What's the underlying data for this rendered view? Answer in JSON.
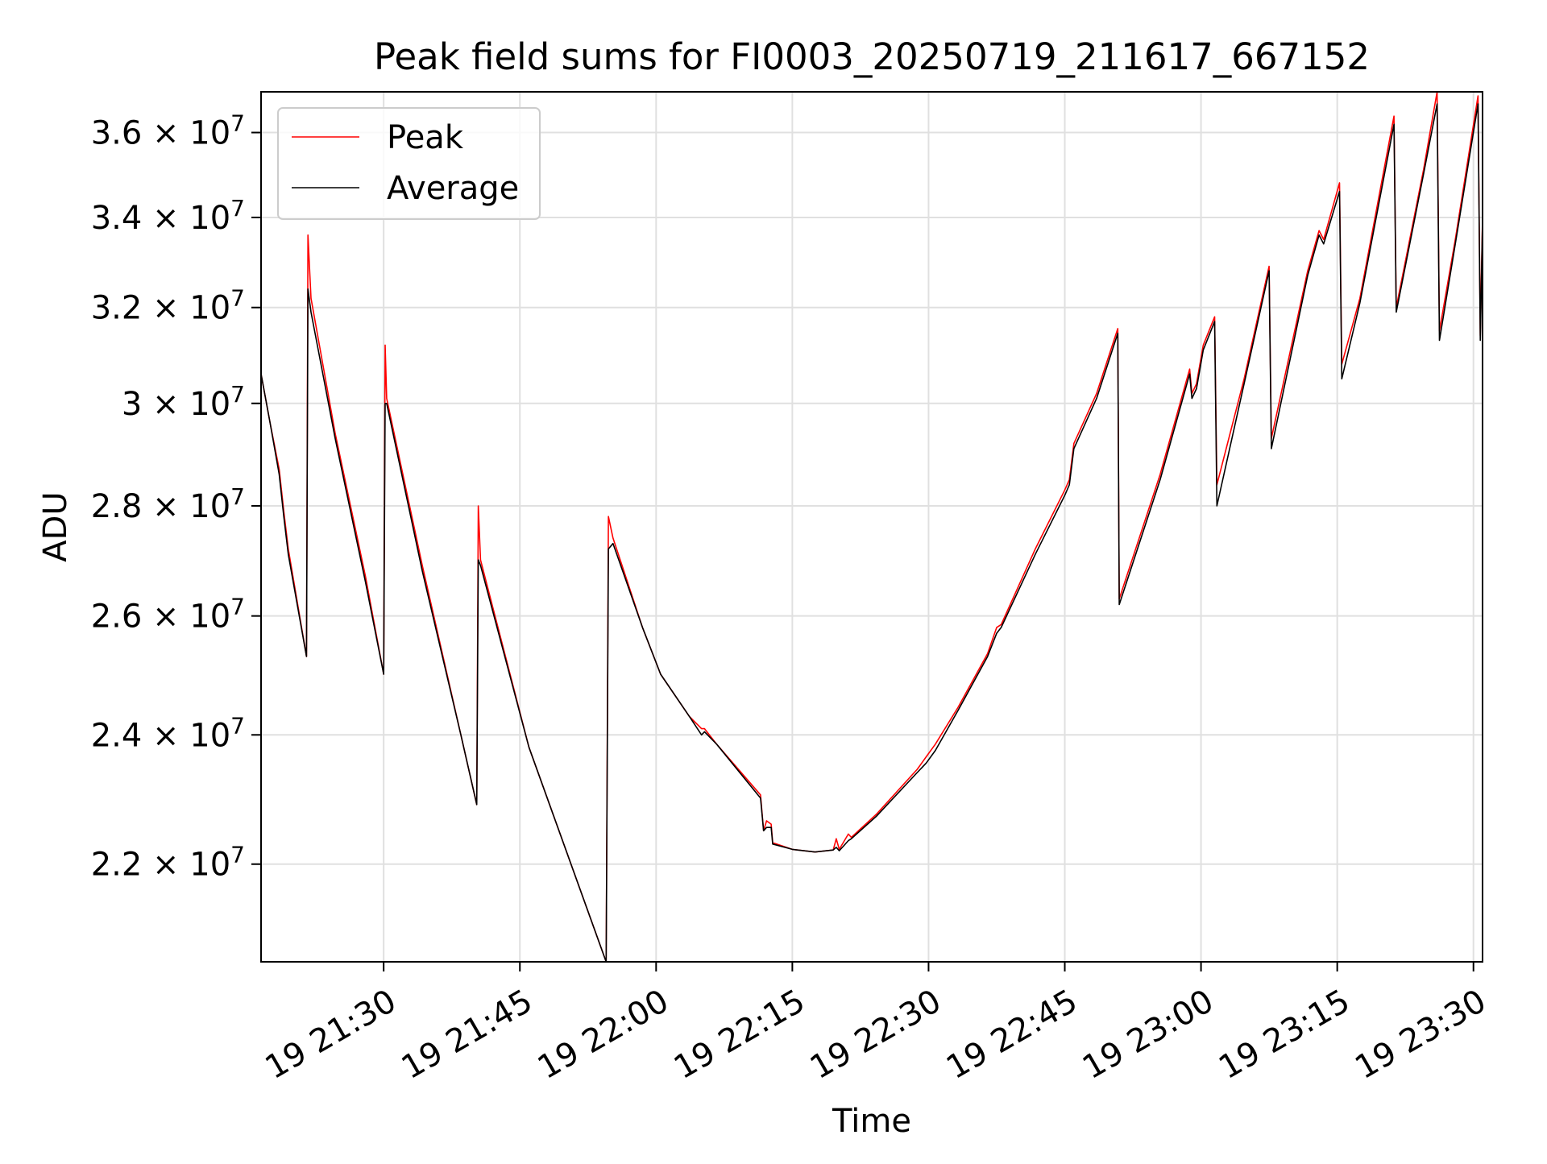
{
  "chart_data": {
    "type": "line",
    "title": "Peak field sums for FI0003_20250719_211617_667152",
    "xlabel": "Time",
    "ylabel": "ADU",
    "yscale": "log",
    "grid": true,
    "legend_position": "upper left",
    "xlim": [
      "2025-07-19 21:16:30",
      "2025-07-19 23:31:00"
    ],
    "ylim": [
      20600000,
      37000000
    ],
    "x_ticks": [
      {
        "value": "2025-07-19 21:30",
        "label": "19 21:30"
      },
      {
        "value": "2025-07-19 21:45",
        "label": "19 21:45"
      },
      {
        "value": "2025-07-19 22:00",
        "label": "19 22:00"
      },
      {
        "value": "2025-07-19 22:15",
        "label": "19 22:15"
      },
      {
        "value": "2025-07-19 22:30",
        "label": "19 22:30"
      },
      {
        "value": "2025-07-19 22:45",
        "label": "19 22:45"
      },
      {
        "value": "2025-07-19 23:00",
        "label": "19 23:00"
      },
      {
        "value": "2025-07-19 23:15",
        "label": "19 23:15"
      },
      {
        "value": "2025-07-19 23:30",
        "label": "19 23:30"
      }
    ],
    "y_ticks": [
      {
        "value": 22000000,
        "mantissa": "2.2",
        "base": "10",
        "exp": "7"
      },
      {
        "value": 24000000,
        "mantissa": "2.4",
        "base": "10",
        "exp": "7"
      },
      {
        "value": 26000000,
        "mantissa": "2.6",
        "base": "10",
        "exp": "7"
      },
      {
        "value": 28000000,
        "mantissa": "2.8",
        "base": "10",
        "exp": "7"
      },
      {
        "value": 30000000,
        "mantissa": "3",
        "base": "10",
        "exp": "7"
      },
      {
        "value": 32000000,
        "mantissa": "3.2",
        "base": "10",
        "exp": "7"
      },
      {
        "value": 34000000,
        "mantissa": "3.4",
        "base": "10",
        "exp": "7"
      },
      {
        "value": 36000000,
        "mantissa": "3.6",
        "base": "10",
        "exp": "7"
      }
    ],
    "series": [
      {
        "name": "Peak",
        "color": "#ff0000",
        "points": [
          [
            "2025-07-19 21:16:30",
            30600000
          ],
          [
            "2025-07-19 21:17:30",
            29600000
          ],
          [
            "2025-07-19 21:18:30",
            28700000
          ],
          [
            "2025-07-19 21:19:00",
            27900000
          ],
          [
            "2025-07-19 21:19:30",
            27200000
          ],
          [
            "2025-07-19 21:21:30",
            25300000
          ],
          [
            "2025-07-19 21:21:40",
            33600000
          ],
          [
            "2025-07-19 21:22:00",
            32200000
          ],
          [
            "2025-07-19 21:24:40",
            29400000
          ],
          [
            "2025-07-19 21:28:00",
            26700000
          ],
          [
            "2025-07-19 21:30:00",
            25000000
          ],
          [
            "2025-07-19 21:30:10",
            31200000
          ],
          [
            "2025-07-19 21:30:20",
            30100000
          ],
          [
            "2025-07-19 21:34:15",
            26900000
          ],
          [
            "2025-07-19 21:38:30",
            24000000
          ],
          [
            "2025-07-19 21:40:15",
            22900000
          ],
          [
            "2025-07-19 21:40:25",
            28000000
          ],
          [
            "2025-07-19 21:40:40",
            27000000
          ],
          [
            "2025-07-19 21:46:00",
            23800000
          ],
          [
            "2025-07-19 21:54:30",
            20600000
          ],
          [
            "2025-07-19 21:54:45",
            27800000
          ],
          [
            "2025-07-19 21:55:15",
            27400000
          ],
          [
            "2025-07-19 21:58:30",
            25800000
          ],
          [
            "2025-07-19 22:00:30",
            25000000
          ],
          [
            "2025-07-19 22:03:40",
            24300000
          ],
          [
            "2025-07-19 22:05:00",
            24100000
          ],
          [
            "2025-07-19 22:05:20",
            24100000
          ],
          [
            "2025-07-19 22:06:40",
            23850000
          ],
          [
            "2025-07-19 22:11:30",
            23050000
          ],
          [
            "2025-07-19 22:11:50",
            22500000
          ],
          [
            "2025-07-19 22:12:10",
            22650000
          ],
          [
            "2025-07-19 22:12:40",
            22600000
          ],
          [
            "2025-07-19 22:12:50",
            22320000
          ],
          [
            "2025-07-19 22:15:00",
            22220000
          ],
          [
            "2025-07-19 22:17:30",
            22180000
          ],
          [
            "2025-07-19 22:19:30",
            22210000
          ],
          [
            "2025-07-19 22:19:50",
            22380000
          ],
          [
            "2025-07-19 22:20:10",
            22220000
          ],
          [
            "2025-07-19 22:21:10",
            22450000
          ],
          [
            "2025-07-19 22:21:30",
            22400000
          ],
          [
            "2025-07-19 22:24:15",
            22750000
          ],
          [
            "2025-07-19 22:28:45",
            23450000
          ],
          [
            "2025-07-19 22:29:45",
            23650000
          ],
          [
            "2025-07-19 22:30:45",
            23850000
          ],
          [
            "2025-07-19 22:33:15",
            24450000
          ],
          [
            "2025-07-19 22:36:30",
            25350000
          ],
          [
            "2025-07-19 22:37:30",
            25800000
          ],
          [
            "2025-07-19 22:38:00",
            25850000
          ],
          [
            "2025-07-19 22:41:45",
            27200000
          ],
          [
            "2025-07-19 22:45:00",
            28300000
          ],
          [
            "2025-07-19 22:45:30",
            28500000
          ],
          [
            "2025-07-19 22:46:00",
            29200000
          ],
          [
            "2025-07-19 22:48:30",
            30200000
          ],
          [
            "2025-07-19 22:50:50",
            31550000
          ],
          [
            "2025-07-19 22:51:00",
            26300000
          ],
          [
            "2025-07-19 22:55:30",
            28600000
          ],
          [
            "2025-07-19 22:58:45",
            30700000
          ],
          [
            "2025-07-19 22:59:00",
            30200000
          ],
          [
            "2025-07-19 22:59:30",
            30400000
          ],
          [
            "2025-07-19 23:00:15",
            31200000
          ],
          [
            "2025-07-19 23:01:30",
            31800000
          ],
          [
            "2025-07-19 23:01:45",
            28400000
          ],
          [
            "2025-07-19 23:04:45",
            30500000
          ],
          [
            "2025-07-19 23:07:30",
            32900000
          ],
          [
            "2025-07-19 23:07:45",
            29300000
          ],
          [
            "2025-07-19 23:11:45",
            32800000
          ],
          [
            "2025-07-19 23:13:00",
            33700000
          ],
          [
            "2025-07-19 23:13:30",
            33500000
          ],
          [
            "2025-07-19 23:15:15",
            34800000
          ],
          [
            "2025-07-19 23:15:30",
            30800000
          ],
          [
            "2025-07-19 23:17:30",
            32200000
          ],
          [
            "2025-07-19 23:21:15",
            36400000
          ],
          [
            "2025-07-19 23:21:30",
            32000000
          ],
          [
            "2025-07-19 23:24:30",
            35100000
          ],
          [
            "2025-07-19 23:26:00",
            37000000
          ],
          [
            "2025-07-19 23:26:15",
            31500000
          ],
          [
            "2025-07-19 23:28:00",
            33500000
          ],
          [
            "2025-07-19 23:30:30",
            36900000
          ],
          [
            "2025-07-19 23:30:45",
            31400000
          ],
          [
            "2025-07-19 23:31:00",
            34000000
          ]
        ]
      },
      {
        "name": "Average",
        "color": "#000000",
        "points": [
          [
            "2025-07-19 21:16:30",
            30600000
          ],
          [
            "2025-07-19 21:17:30",
            29600000
          ],
          [
            "2025-07-19 21:18:30",
            28600000
          ],
          [
            "2025-07-19 21:19:00",
            27800000
          ],
          [
            "2025-07-19 21:19:30",
            27100000
          ],
          [
            "2025-07-19 21:21:30",
            25300000
          ],
          [
            "2025-07-19 21:21:40",
            32400000
          ],
          [
            "2025-07-19 21:22:00",
            31900000
          ],
          [
            "2025-07-19 21:24:40",
            29300000
          ],
          [
            "2025-07-19 21:28:00",
            26600000
          ],
          [
            "2025-07-19 21:30:00",
            25000000
          ],
          [
            "2025-07-19 21:30:10",
            30000000
          ],
          [
            "2025-07-19 21:30:20",
            30000000
          ],
          [
            "2025-07-19 21:34:15",
            26800000
          ],
          [
            "2025-07-19 21:38:30",
            24000000
          ],
          [
            "2025-07-19 21:40:15",
            22900000
          ],
          [
            "2025-07-19 21:40:25",
            27000000
          ],
          [
            "2025-07-19 21:40:40",
            26900000
          ],
          [
            "2025-07-19 21:46:00",
            23800000
          ],
          [
            "2025-07-19 21:54:30",
            20600000
          ],
          [
            "2025-07-19 21:54:45",
            27200000
          ],
          [
            "2025-07-19 21:55:15",
            27300000
          ],
          [
            "2025-07-19 21:58:30",
            25800000
          ],
          [
            "2025-07-19 22:00:30",
            25000000
          ],
          [
            "2025-07-19 22:03:40",
            24300000
          ],
          [
            "2025-07-19 22:05:00",
            24000000
          ],
          [
            "2025-07-19 22:05:20",
            24050000
          ],
          [
            "2025-07-19 22:06:40",
            23850000
          ],
          [
            "2025-07-19 22:11:30",
            23000000
          ],
          [
            "2025-07-19 22:11:50",
            22500000
          ],
          [
            "2025-07-19 22:12:10",
            22550000
          ],
          [
            "2025-07-19 22:12:40",
            22550000
          ],
          [
            "2025-07-19 22:12:50",
            22300000
          ],
          [
            "2025-07-19 22:15:00",
            22220000
          ],
          [
            "2025-07-19 22:17:30",
            22180000
          ],
          [
            "2025-07-19 22:19:30",
            22210000
          ],
          [
            "2025-07-19 22:19:50",
            22250000
          ],
          [
            "2025-07-19 22:20:10",
            22200000
          ],
          [
            "2025-07-19 22:21:10",
            22350000
          ],
          [
            "2025-07-19 22:21:30",
            22380000
          ],
          [
            "2025-07-19 22:24:15",
            22720000
          ],
          [
            "2025-07-19 22:28:45",
            23400000
          ],
          [
            "2025-07-19 22:29:45",
            23550000
          ],
          [
            "2025-07-19 22:30:45",
            23750000
          ],
          [
            "2025-07-19 22:33:15",
            24400000
          ],
          [
            "2025-07-19 22:36:30",
            25300000
          ],
          [
            "2025-07-19 22:37:30",
            25700000
          ],
          [
            "2025-07-19 22:38:00",
            25800000
          ],
          [
            "2025-07-19 22:41:45",
            27100000
          ],
          [
            "2025-07-19 22:45:00",
            28200000
          ],
          [
            "2025-07-19 22:45:30",
            28400000
          ],
          [
            "2025-07-19 22:46:00",
            29100000
          ],
          [
            "2025-07-19 22:48:30",
            30100000
          ],
          [
            "2025-07-19 22:50:50",
            31450000
          ],
          [
            "2025-07-19 22:51:00",
            26200000
          ],
          [
            "2025-07-19 22:55:30",
            28500000
          ],
          [
            "2025-07-19 22:58:45",
            30600000
          ],
          [
            "2025-07-19 22:59:00",
            30100000
          ],
          [
            "2025-07-19 22:59:30",
            30300000
          ],
          [
            "2025-07-19 23:00:15",
            31100000
          ],
          [
            "2025-07-19 23:01:30",
            31700000
          ],
          [
            "2025-07-19 23:01:45",
            28000000
          ],
          [
            "2025-07-19 23:04:45",
            30400000
          ],
          [
            "2025-07-19 23:07:30",
            32800000
          ],
          [
            "2025-07-19 23:07:45",
            29100000
          ],
          [
            "2025-07-19 23:11:45",
            32700000
          ],
          [
            "2025-07-19 23:13:00",
            33600000
          ],
          [
            "2025-07-19 23:13:30",
            33400000
          ],
          [
            "2025-07-19 23:15:15",
            34600000
          ],
          [
            "2025-07-19 23:15:30",
            30500000
          ],
          [
            "2025-07-19 23:17:30",
            32100000
          ],
          [
            "2025-07-19 23:21:15",
            36200000
          ],
          [
            "2025-07-19 23:21:30",
            31900000
          ],
          [
            "2025-07-19 23:24:30",
            35000000
          ],
          [
            "2025-07-19 23:26:00",
            36700000
          ],
          [
            "2025-07-19 23:26:15",
            31300000
          ],
          [
            "2025-07-19 23:28:00",
            33400000
          ],
          [
            "2025-07-19 23:30:30",
            36700000
          ],
          [
            "2025-07-19 23:30:45",
            31300000
          ],
          [
            "2025-07-19 23:31:00",
            33900000
          ]
        ]
      }
    ]
  },
  "colors": {
    "grid": "#e0e0e0",
    "axes": "#000000",
    "legend_border": "#cccccc",
    "background": "#ffffff"
  }
}
